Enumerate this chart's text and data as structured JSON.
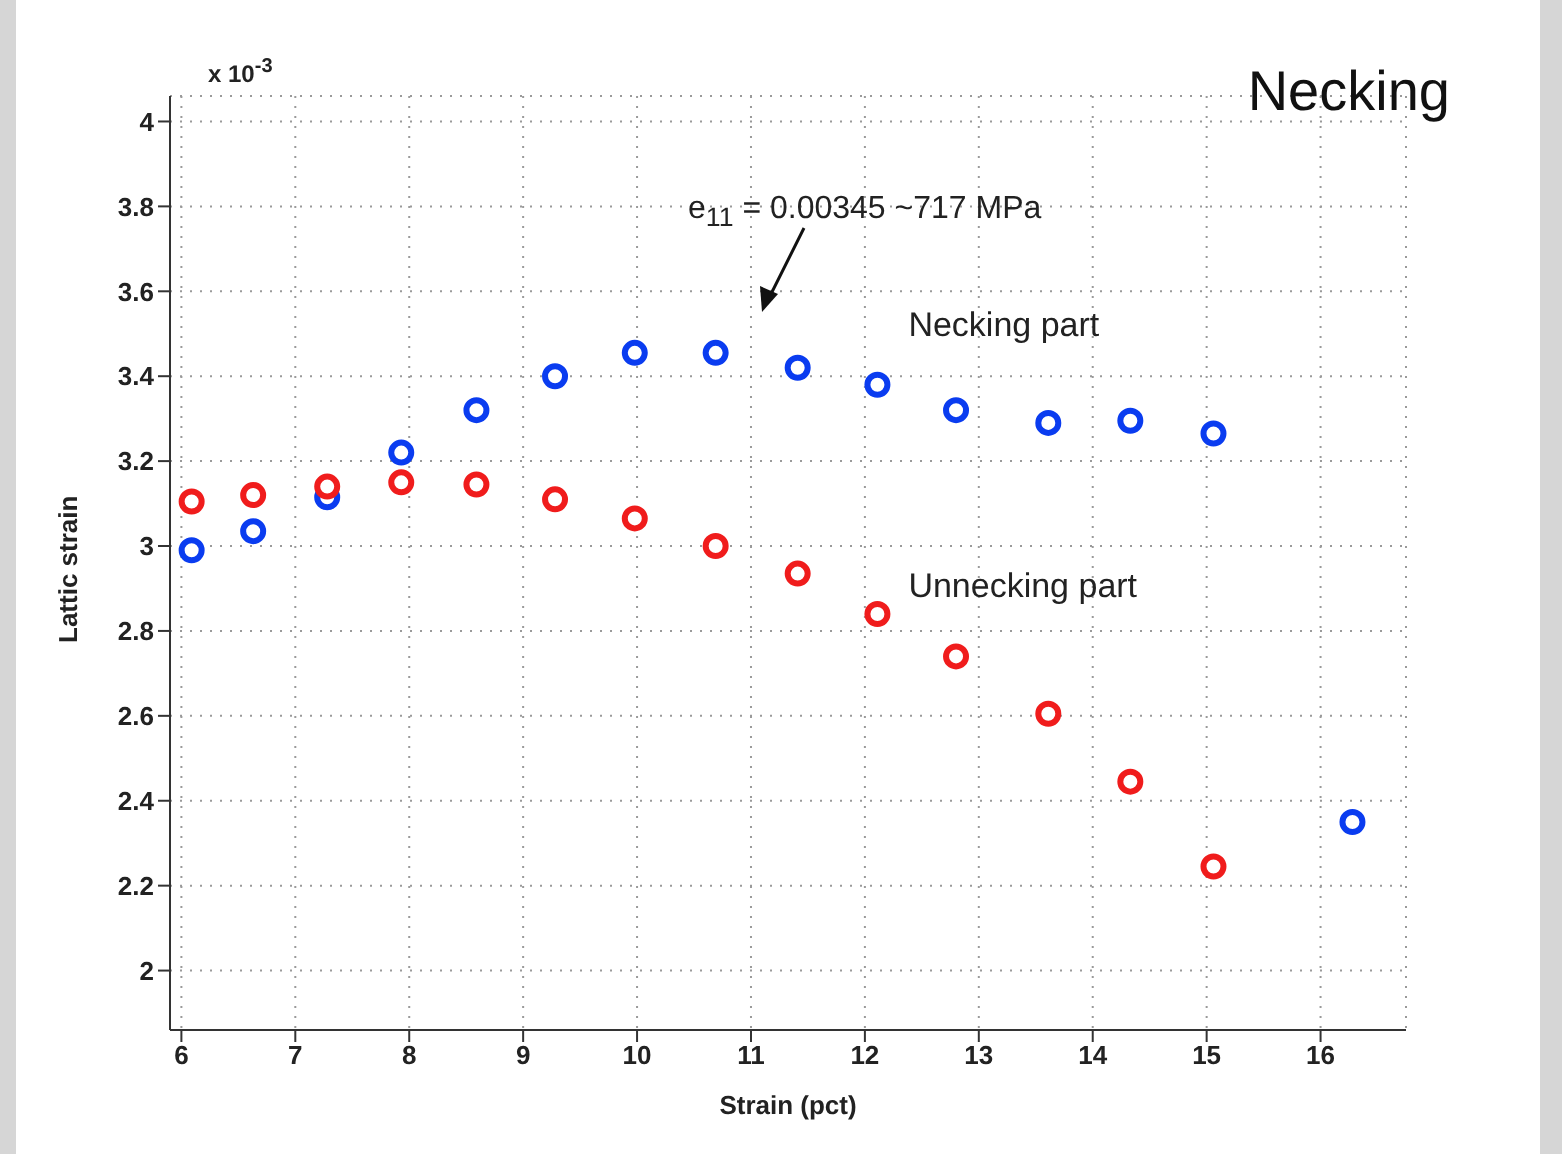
{
  "chart_data": {
    "type": "scatter",
    "title": "Necking",
    "xlabel": "Strain (pct)",
    "ylabel": "Lattic strain",
    "annotations": [
      "x 10$^{-3}$",
      "e$_{11}$ = 0.00345 ~717 MPa"
    ],
    "series": [
      {
        "name": "Necking part",
        "color": "#0a3cf0",
        "x": [
          6.09,
          6.63,
          7.28,
          7.93,
          8.59,
          9.28,
          9.98,
          10.69,
          11.41,
          12.11,
          12.8,
          13.61,
          14.33,
          15.06,
          16.28
        ],
        "values": [
          2.99,
          3.035,
          3.115,
          3.22,
          3.32,
          3.4,
          3.455,
          3.455,
          3.42,
          3.38,
          3.32,
          3.29,
          3.295,
          3.265,
          2.35
        ]
      },
      {
        "name": "Unnecking part",
        "color": "#f01c1c",
        "x": [
          6.09,
          6.63,
          7.28,
          7.93,
          8.59,
          9.28,
          9.98,
          10.69,
          11.41,
          12.11,
          12.8,
          13.61,
          14.33,
          15.06
        ],
        "values": [
          3.105,
          3.12,
          3.14,
          3.15,
          3.145,
          3.11,
          3.065,
          3.0,
          2.935,
          2.84,
          2.74,
          2.605,
          2.445,
          2.245
        ]
      }
    ],
    "xlim": [
      5.9,
      16.75
    ],
    "xticks": [
      6,
      7,
      8,
      9,
      10,
      11,
      12,
      13,
      14,
      15,
      16
    ],
    "ylim": [
      1.86,
      4.06
    ],
    "yticks": [
      2,
      2.2,
      2.4,
      2.6,
      2.8,
      3,
      3.2,
      3.4,
      3.6,
      3.8,
      4
    ],
    "grid": true,
    "marker": "circle"
  }
}
